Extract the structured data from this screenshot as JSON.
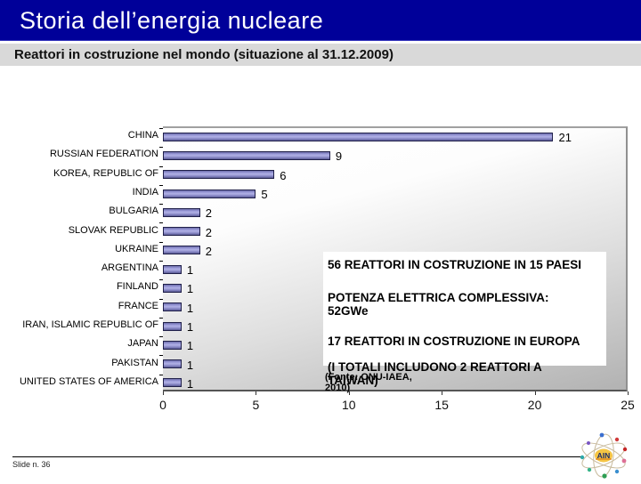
{
  "slide": {
    "title": "Storia dell’energia nucleare",
    "subtitle": "Reattori in costruzione nel mondo (situazione al 31.12.2009)",
    "footer": "Slide n. 36",
    "logo_text": "AIN"
  },
  "chart_data": {
    "type": "bar",
    "orientation": "horizontal",
    "title": "",
    "xlabel": "",
    "ylabel": "",
    "categories": [
      "CHINA",
      "RUSSIAN FEDERATION",
      "KOREA, REPUBLIC OF",
      "INDIA",
      "BULGARIA",
      "SLOVAK REPUBLIC",
      "UKRAINE",
      "ARGENTINA",
      "FINLAND",
      "FRANCE",
      "IRAN, ISLAMIC REPUBLIC OF",
      "JAPAN",
      "PAKISTAN",
      "UNITED STATES OF AMERICA"
    ],
    "values": [
      21,
      9,
      6,
      5,
      2,
      2,
      2,
      1,
      1,
      1,
      1,
      1,
      1,
      1
    ],
    "xlim": [
      0,
      25
    ],
    "x_ticks": [
      0,
      5,
      10,
      15,
      20,
      25
    ],
    "grid": false,
    "legend": false,
    "data_labels": true,
    "bar_color": "#8f8fcc",
    "plot_bg_top": "#ffffff",
    "plot_bg_bottom": "#b2b2b2"
  },
  "annotations": {
    "line1": "56 REATTORI IN COSTRUZIONE IN 15 PAESI",
    "line2a": "POTENZA ELETTRICA COMPLESSIVA:",
    "line2b": "52GWe",
    "line3": "17 REATTORI IN COSTRUZIONE IN EUROPA",
    "line4": "(I TOTALI INCLUDONO 2 REATTORI A TAIWAN)",
    "fonte": "(Fonte: ONU-IAEA,\n2010)"
  },
  "colors": {
    "title_bar": "#000099",
    "subtitle_bar": "#d9d9d9",
    "bar_fill": "#8f8fcc",
    "bar_border": "#20204a"
  }
}
